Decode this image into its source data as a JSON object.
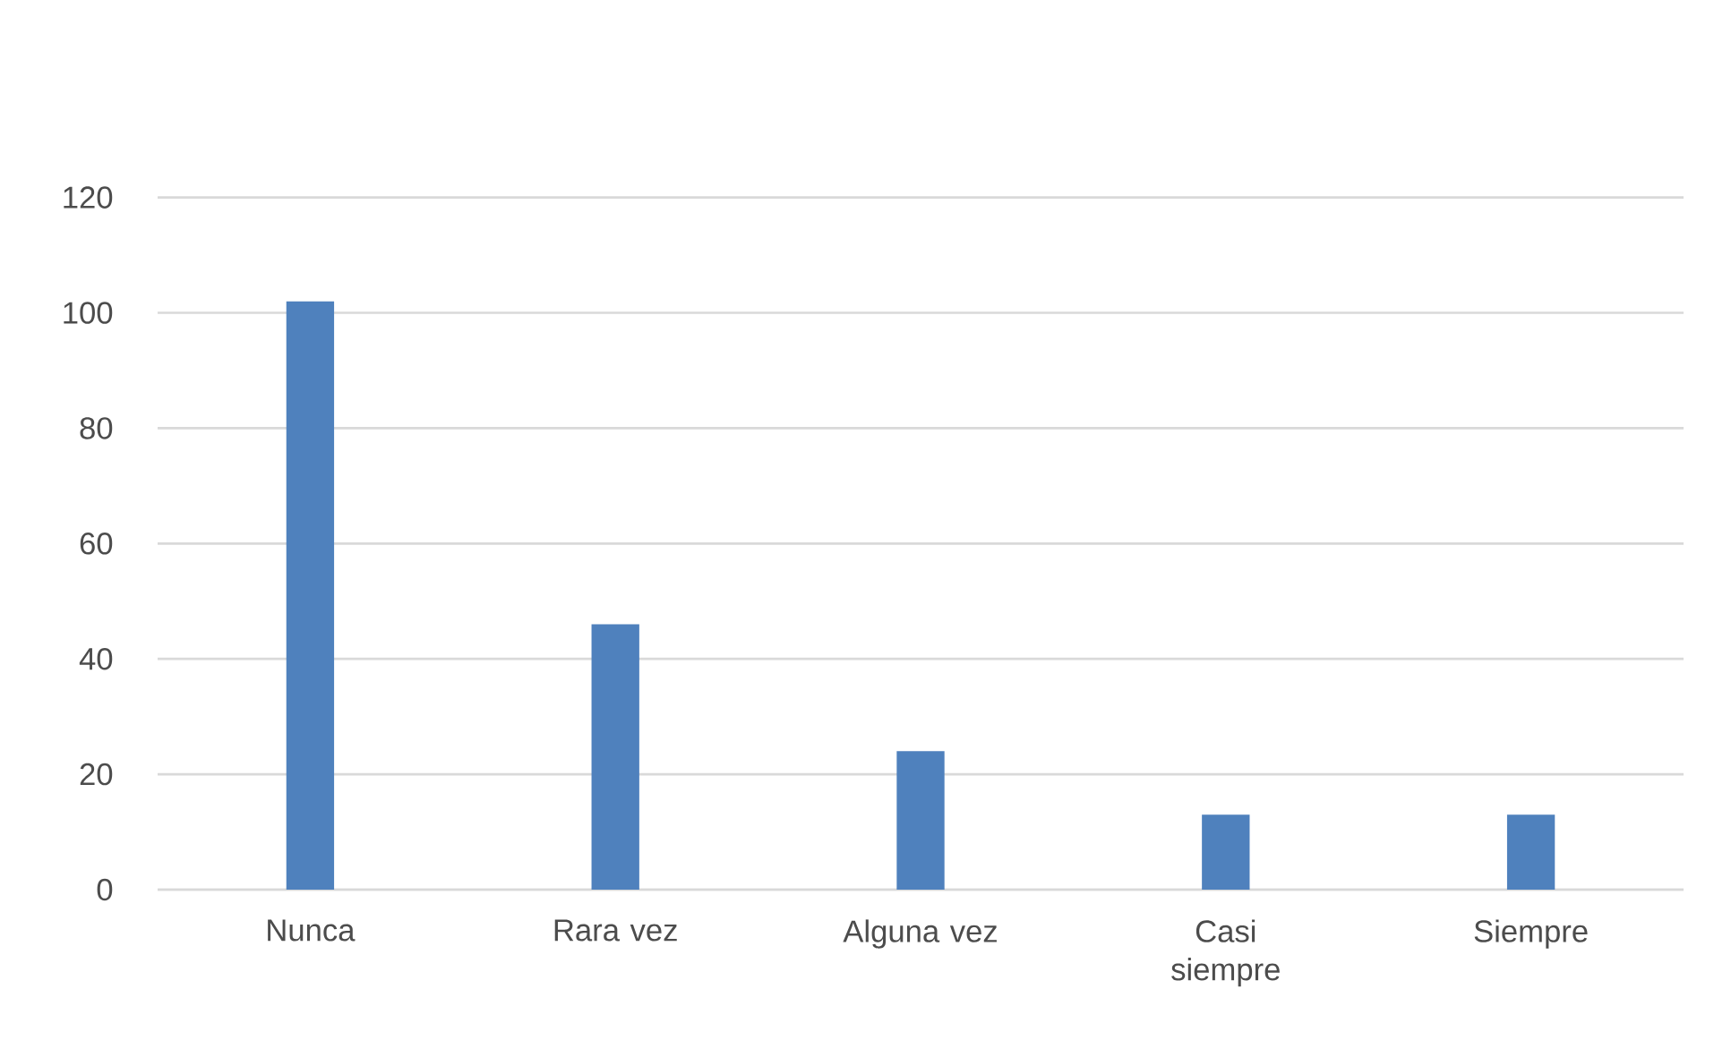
{
  "chart_data": {
    "type": "bar",
    "categories": [
      "Nunca",
      "Rara vez",
      "Alguna vez",
      "Casi siempre",
      "Siempre"
    ],
    "values": [
      102,
      46,
      24,
      13,
      13
    ],
    "color": "#4f81bd",
    "ylim": [
      0,
      120
    ],
    "yticks": [
      0,
      20,
      40,
      60,
      80,
      100,
      120
    ],
    "grid": "y"
  }
}
